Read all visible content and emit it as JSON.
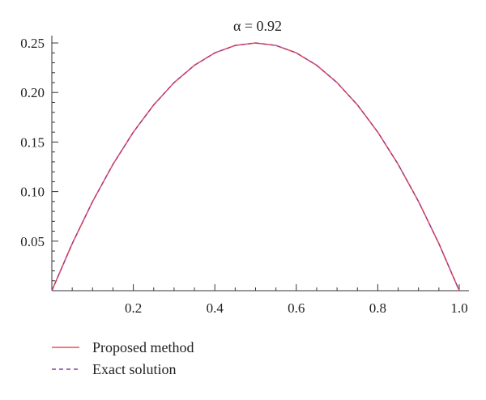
{
  "chart_data": {
    "type": "line",
    "title": "α = 0.92",
    "xlabel": "",
    "ylabel": "",
    "xlim": [
      0,
      1
    ],
    "ylim": [
      0,
      0.25
    ],
    "x_ticks": [
      "0.2",
      "0.4",
      "0.6",
      "0.8",
      "1.0"
    ],
    "y_ticks": [
      "0.05",
      "0.10",
      "0.15",
      "0.20",
      "0.25"
    ],
    "grid": false,
    "legend_position": "bottom-left",
    "x": [
      0,
      0.05,
      0.1,
      0.15,
      0.2,
      0.25,
      0.3,
      0.35,
      0.4,
      0.45,
      0.5,
      0.55,
      0.6,
      0.65,
      0.7,
      0.75,
      0.8,
      0.85,
      0.9,
      0.95,
      1.0
    ],
    "series": [
      {
        "name": "Proposed method",
        "color": "#e8505b",
        "style": "solid",
        "values": [
          0,
          0.0475,
          0.09,
          0.1275,
          0.16,
          0.1875,
          0.21,
          0.2275,
          0.24,
          0.2475,
          0.25,
          0.2475,
          0.24,
          0.2275,
          0.21,
          0.1875,
          0.16,
          0.1275,
          0.09,
          0.0475,
          0
        ]
      },
      {
        "name": "Exact solution",
        "color": "#8a3a9a",
        "style": "dashed",
        "values": [
          0,
          0.0475,
          0.09,
          0.1275,
          0.16,
          0.1875,
          0.21,
          0.2275,
          0.24,
          0.2475,
          0.25,
          0.2475,
          0.24,
          0.2275,
          0.21,
          0.1875,
          0.16,
          0.1275,
          0.09,
          0.0475,
          0
        ]
      }
    ]
  }
}
